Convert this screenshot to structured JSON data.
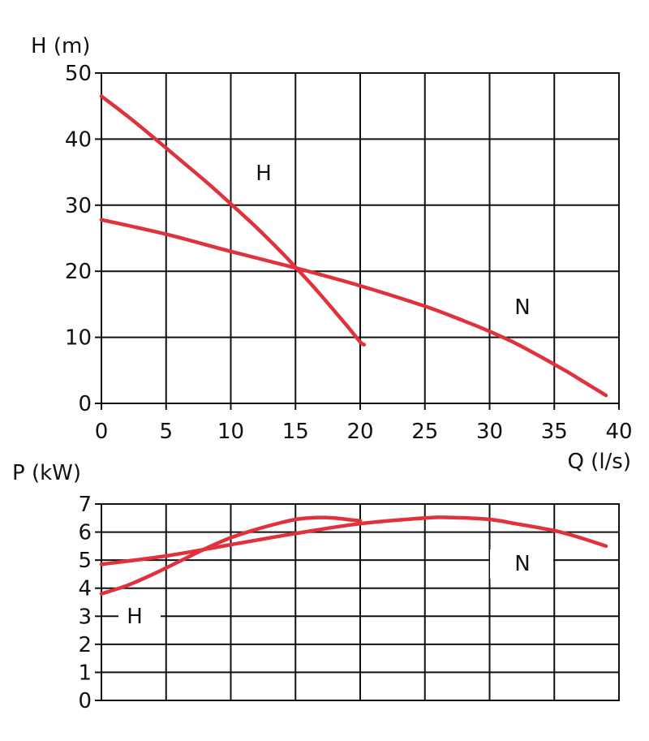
{
  "chart_data": [
    {
      "type": "line",
      "xlabel": "Q (l/s)",
      "ylabel": "H (m)",
      "xlim": [
        0,
        40
      ],
      "ylim": [
        0,
        50
      ],
      "xticks": [
        "0",
        "5",
        "10",
        "15",
        "20",
        "25",
        "30",
        "35",
        "40"
      ],
      "yticks": [
        "0",
        "10",
        "20",
        "30",
        "40",
        "50"
      ],
      "grid": true,
      "series": [
        {
          "name": "H",
          "x": [
            0,
            2,
            4,
            6,
            8,
            10,
            12,
            14,
            15,
            16,
            17,
            18,
            19,
            20,
            20.3
          ],
          "y": [
            46.5,
            43.5,
            40.3,
            37.0,
            33.7,
            30.2,
            26.6,
            22.7,
            20.6,
            18.5,
            16.3,
            14.0,
            11.7,
            9.3,
            8.9
          ]
        },
        {
          "name": "N",
          "x": [
            0,
            5,
            10,
            15,
            20,
            25,
            28,
            30,
            32,
            34,
            36,
            37,
            38,
            39
          ],
          "y": [
            27.8,
            25.6,
            23.0,
            20.5,
            17.8,
            14.7,
            12.5,
            10.9,
            9.1,
            7.0,
            4.8,
            3.6,
            2.4,
            1.2
          ]
        }
      ],
      "color": "#e0323c"
    },
    {
      "type": "line",
      "xlabel": "",
      "ylabel": "P (kW)",
      "xlim": [
        0,
        40
      ],
      "ylim": [
        0,
        7
      ],
      "yticks": [
        "0",
        "1",
        "2",
        "3",
        "4",
        "5",
        "6",
        "7"
      ],
      "grid": true,
      "series": [
        {
          "name": "H",
          "x": [
            0,
            2,
            4,
            6,
            8,
            10,
            12,
            14,
            15,
            16,
            17,
            18,
            19,
            20
          ],
          "y": [
            3.8,
            4.1,
            4.5,
            4.95,
            5.4,
            5.8,
            6.1,
            6.35,
            6.45,
            6.5,
            6.52,
            6.5,
            6.45,
            6.4
          ]
        },
        {
          "name": "N",
          "x": [
            0,
            5,
            10,
            15,
            20,
            25,
            27,
            30,
            32,
            35,
            37,
            39
          ],
          "y": [
            4.85,
            5.15,
            5.55,
            5.95,
            6.3,
            6.5,
            6.52,
            6.45,
            6.3,
            6.05,
            5.8,
            5.5
          ]
        }
      ],
      "color": "#e0323c"
    }
  ]
}
